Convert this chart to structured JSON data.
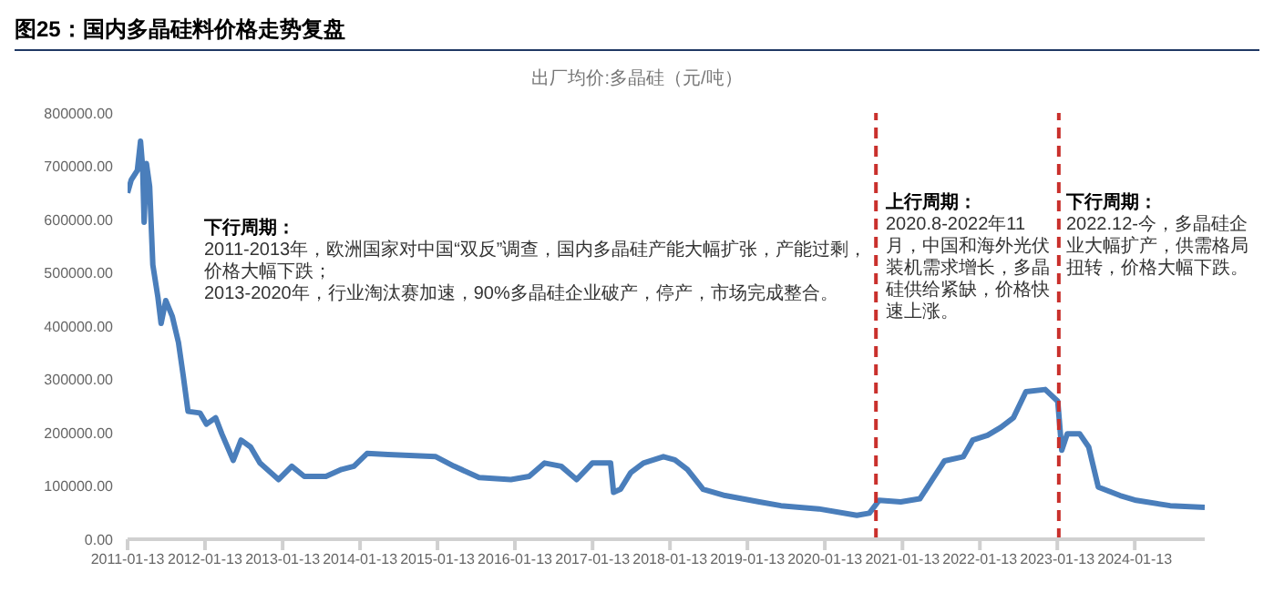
{
  "chart_data": {
    "type": "line",
    "title": "图25：国内多晶硅料价格走势复盘",
    "subtitle": "出厂均价:多晶硅（元/吨）",
    "x": [
      "2011-01-13",
      "2011-01-30",
      "2011-02-28",
      "2011-03-15",
      "2011-03-25",
      "2011-04-01",
      "2011-04-12",
      "2011-04-27",
      "2011-05-12",
      "2011-06-05",
      "2011-06-20",
      "2011-07-12",
      "2011-08-12",
      "2011-09-10",
      "2011-10-02",
      "2011-10-25",
      "2011-12-20",
      "2012-01-20",
      "2012-03-03",
      "2012-04-01",
      "2012-05-25",
      "2012-07-01",
      "2012-08-15",
      "2012-09-28",
      "2012-12-25",
      "2013-02-25",
      "2013-04-25",
      "2013-08-05",
      "2013-10-18",
      "2013-12-15",
      "2014-02-15",
      "2014-05-25",
      "2015-01-05",
      "2015-04-01",
      "2015-07-28",
      "2015-12-25",
      "2016-03-20",
      "2016-06-01",
      "2016-08-18",
      "2016-10-30",
      "2017-01-12",
      "2017-04-08",
      "2017-04-22",
      "2017-05-25",
      "2017-07-12",
      "2017-09-10",
      "2017-12-13",
      "2018-02-05",
      "2018-04-05",
      "2018-06-18",
      "2018-09-30",
      "2019-03-10",
      "2019-06-20",
      "2019-12-15",
      "2020-06-12",
      "2020-08-10",
      "2020-09-25",
      "2021-01-05",
      "2021-04-05",
      "2021-06-03",
      "2021-07-30",
      "2021-10-27",
      "2021-12-10",
      "2022-02-18",
      "2022-04-22",
      "2022-06-20",
      "2022-08-18",
      "2022-11-17",
      "2023-01-15",
      "2023-02-03",
      "2023-03-01",
      "2023-04-28",
      "2023-06-10",
      "2023-07-25",
      "2023-11-05",
      "2024-01-20",
      "2024-06-28",
      "2024-12-08"
    ],
    "series": [
      {
        "color": "#4a7ebb",
        "values": [
          650000,
          674000,
          692000,
          747000,
          698000,
          595000,
          705000,
          662000,
          515000,
          454000,
          405000,
          448000,
          418000,
          369000,
          308000,
          240000,
          237000,
          216000,
          228000,
          198000,
          148000,
          186000,
          173000,
          143000,
          112000,
          137000,
          118000,
          118000,
          131000,
          137000,
          161000,
          159000,
          155000,
          137000,
          116000,
          112000,
          118000,
          143000,
          137000,
          112000,
          143000,
          143000,
          88000,
          94000,
          125000,
          143000,
          155000,
          149000,
          131000,
          94000,
          82000,
          70000,
          63000,
          57000,
          45000,
          49000,
          73000,
          70000,
          76000,
          112000,
          147000,
          155000,
          186000,
          195000,
          210000,
          228000,
          277000,
          281000,
          259000,
          167000,
          198000,
          198000,
          173000,
          98000,
          82000,
          73000,
          63000,
          60000
        ]
      }
    ],
    "xlim": [
      "2011-01-13",
      "2024-12-08"
    ],
    "xticks": [
      "2011-01-13",
      "2012-01-13",
      "2013-01-13",
      "2014-01-13",
      "2015-01-13",
      "2016-01-13",
      "2017-01-13",
      "2018-01-13",
      "2019-01-13",
      "2020-01-13",
      "2021-01-13",
      "2022-01-13",
      "2023-01-13",
      "2024-01-13"
    ],
    "ylim": [
      0,
      800000
    ],
    "yticks": [
      {
        "value": 0,
        "label": "0.00"
      },
      {
        "value": 100000,
        "label": "100000.00"
      },
      {
        "value": 200000,
        "label": "200000.00"
      },
      {
        "value": 300000,
        "label": "300000.00"
      },
      {
        "value": 400000,
        "label": "400000.00"
      },
      {
        "value": 500000,
        "label": "500000.00"
      },
      {
        "value": 600000,
        "label": "600000.00"
      },
      {
        "value": 700000,
        "label": "700000.00"
      },
      {
        "value": 800000,
        "label": "800000.00"
      }
    ],
    "ref_lines": [
      {
        "axis": "x",
        "value": "2020-09-10",
        "color": "#c9302c",
        "line_style": "dashed"
      },
      {
        "axis": "x",
        "value": "2023-01-20",
        "color": "#c9302c",
        "line_style": "dashed"
      }
    ],
    "annotations": [
      "下行周期：\n2011-2013年，欧洲国家对中国“双反”调查，国内多晶硅产能大幅扩张，产能过剩，价格大幅下跌；\n2013-2020年，行业淘汰赛加速，90%多晶硅企业破产，停产，市场完成整合。",
      "上行周期：\n2020.8-2022年11月，中国和海外光伏装机需求增长，多晶硅供给紧缺，价格快速上涨。",
      "下行周期：\n2022.12-今，多晶硅企业大幅扩产，供需格局扭转，价格大幅下跌。"
    ],
    "grid": false,
    "legend": false,
    "marker": "none",
    "line_style": "solid"
  }
}
